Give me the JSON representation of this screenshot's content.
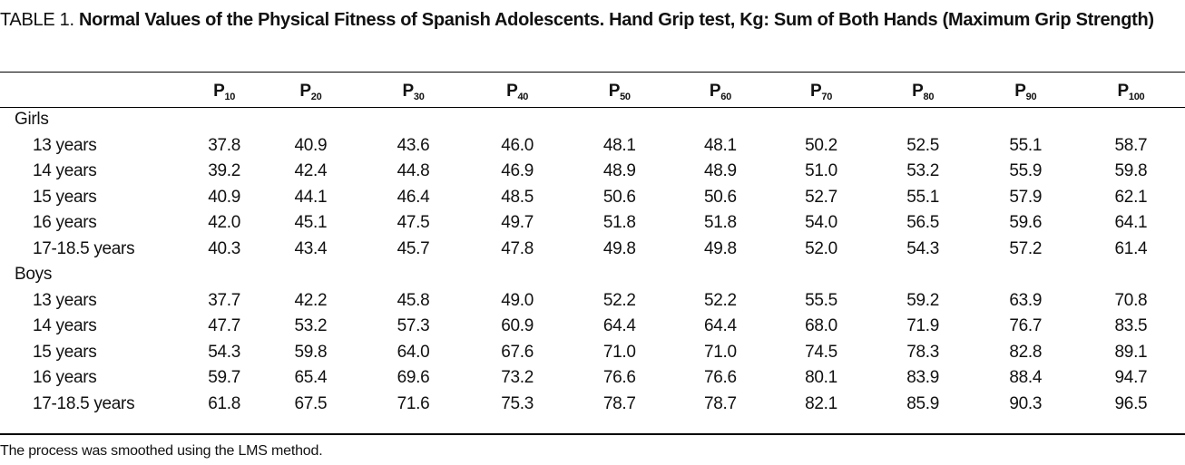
{
  "title": {
    "label": "TABLE 1.",
    "text": "Normal Values of the Physical Fitness of Spanish Adolescents. Hand Grip test, Kg: Sum of Both Hands (Maximum Grip Strength)"
  },
  "columns": [
    {
      "p": "P",
      "sub": "10"
    },
    {
      "p": "P",
      "sub": "20"
    },
    {
      "p": "P",
      "sub": "30"
    },
    {
      "p": "P",
      "sub": "40"
    },
    {
      "p": "P",
      "sub": "50"
    },
    {
      "p": "P",
      "sub": "60"
    },
    {
      "p": "P",
      "sub": "70"
    },
    {
      "p": "P",
      "sub": "80"
    },
    {
      "p": "P",
      "sub": "90"
    },
    {
      "p": "P",
      "sub": "100"
    }
  ],
  "groups": [
    {
      "name": "Girls",
      "rows": [
        {
          "label": "13 years",
          "values": [
            "37.8",
            "40.9",
            "43.6",
            "46.0",
            "48.1",
            "48.1",
            "50.2",
            "52.5",
            "55.1",
            "58.7"
          ]
        },
        {
          "label": "14 years",
          "values": [
            "39.2",
            "42.4",
            "44.8",
            "46.9",
            "48.9",
            "48.9",
            "51.0",
            "53.2",
            "55.9",
            "59.8"
          ]
        },
        {
          "label": "15 years",
          "values": [
            "40.9",
            "44.1",
            "46.4",
            "48.5",
            "50.6",
            "50.6",
            "52.7",
            "55.1",
            "57.9",
            "62.1"
          ]
        },
        {
          "label": "16 years",
          "values": [
            "42.0",
            "45.1",
            "47.5",
            "49.7",
            "51.8",
            "51.8",
            "54.0",
            "56.5",
            "59.6",
            "64.1"
          ]
        },
        {
          "label": "17-18.5 years",
          "values": [
            "40.3",
            "43.4",
            "45.7",
            "47.8",
            "49.8",
            "49.8",
            "52.0",
            "54.3",
            "57.2",
            "61.4"
          ]
        }
      ]
    },
    {
      "name": "Boys",
      "rows": [
        {
          "label": "13 years",
          "values": [
            "37.7",
            "42.2",
            "45.8",
            "49.0",
            "52.2",
            "52.2",
            "55.5",
            "59.2",
            "63.9",
            "70.8"
          ]
        },
        {
          "label": "14 years",
          "values": [
            "47.7",
            "53.2",
            "57.3",
            "60.9",
            "64.4",
            "64.4",
            "68.0",
            "71.9",
            "76.7",
            "83.5"
          ]
        },
        {
          "label": "15 years",
          "values": [
            "54.3",
            "59.8",
            "64.0",
            "67.6",
            "71.0",
            "71.0",
            "74.5",
            "78.3",
            "82.8",
            "89.1"
          ]
        },
        {
          "label": "16 years",
          "values": [
            "59.7",
            "65.4",
            "69.6",
            "73.2",
            "76.6",
            "76.6",
            "80.1",
            "83.9",
            "88.4",
            "94.7"
          ]
        },
        {
          "label": "17-18.5 years",
          "values": [
            "61.8",
            "67.5",
            "71.6",
            "75.3",
            "78.7",
            "78.7",
            "82.1",
            "85.9",
            "90.3",
            "96.5"
          ]
        }
      ]
    }
  ],
  "footnote": "The process was smoothed using the LMS method."
}
